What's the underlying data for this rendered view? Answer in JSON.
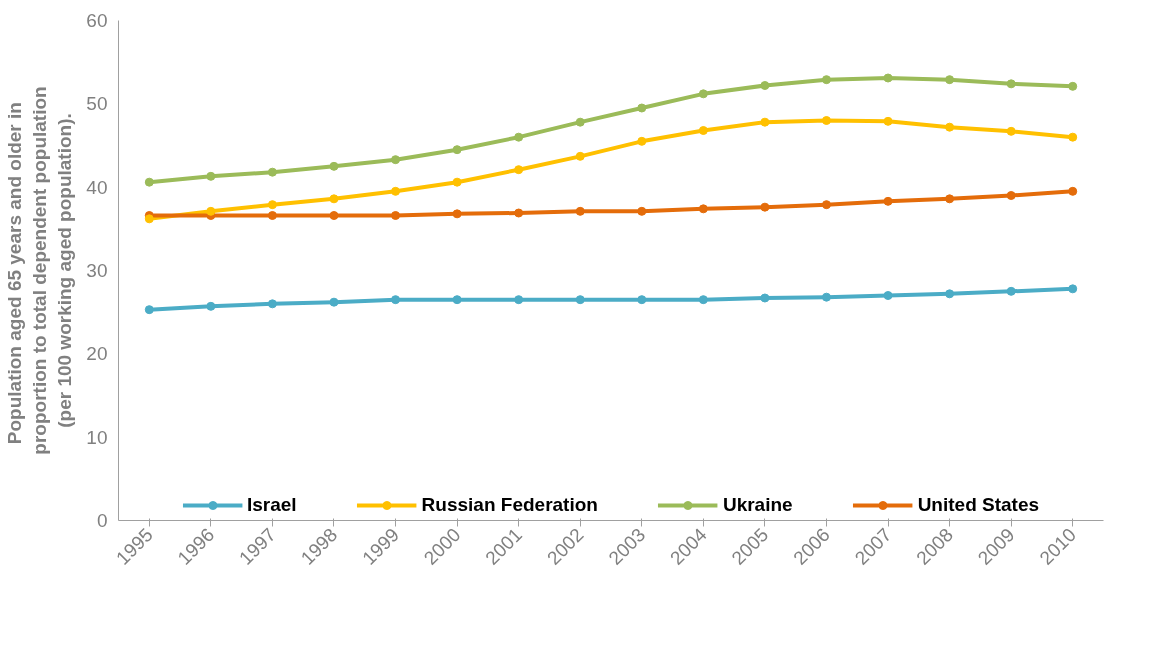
{
  "chart_data": {
    "type": "line",
    "ylabel": "Population  aged 65 years and older in\nproportion to total dependent population\n(per 100 working aged population).",
    "categories": [
      "1995",
      "1996",
      "1997",
      "1998",
      "1999",
      "2000",
      "2001",
      "2002",
      "2003",
      "2004",
      "2005",
      "2006",
      "2007",
      "2008",
      "2009",
      "2010"
    ],
    "ylim": [
      0,
      60
    ],
    "yticks": [
      0,
      10,
      20,
      30,
      40,
      50,
      60
    ],
    "grid": false,
    "legend": "bottom",
    "marker": "circle",
    "line_style": "solid",
    "series": [
      {
        "name": "Israel",
        "color": "#4bacc6",
        "values": [
          25.3,
          25.7,
          26.0,
          26.2,
          26.5,
          26.5,
          26.5,
          26.5,
          26.5,
          26.5,
          26.7,
          26.8,
          27.0,
          27.2,
          27.5,
          27.8
        ]
      },
      {
        "name": "Russian Federation",
        "color": "#ffc000",
        "values": [
          36.2,
          37.1,
          37.9,
          38.6,
          39.5,
          40.6,
          42.1,
          43.7,
          45.5,
          46.8,
          47.8,
          48.0,
          47.9,
          47.2,
          46.7,
          46.0
        ]
      },
      {
        "name": "Ukraine",
        "color": "#9bbb59",
        "values": [
          40.6,
          41.3,
          41.8,
          42.5,
          43.3,
          44.5,
          46.0,
          47.8,
          49.5,
          51.2,
          52.2,
          52.9,
          53.1,
          52.9,
          52.4,
          52.1
        ]
      },
      {
        "name": "United States",
        "color": "#e46c0a",
        "values": [
          36.6,
          36.6,
          36.6,
          36.6,
          36.6,
          36.8,
          36.9,
          37.1,
          37.1,
          37.4,
          37.6,
          37.9,
          38.3,
          38.6,
          39.0,
          39.5
        ]
      }
    ]
  }
}
